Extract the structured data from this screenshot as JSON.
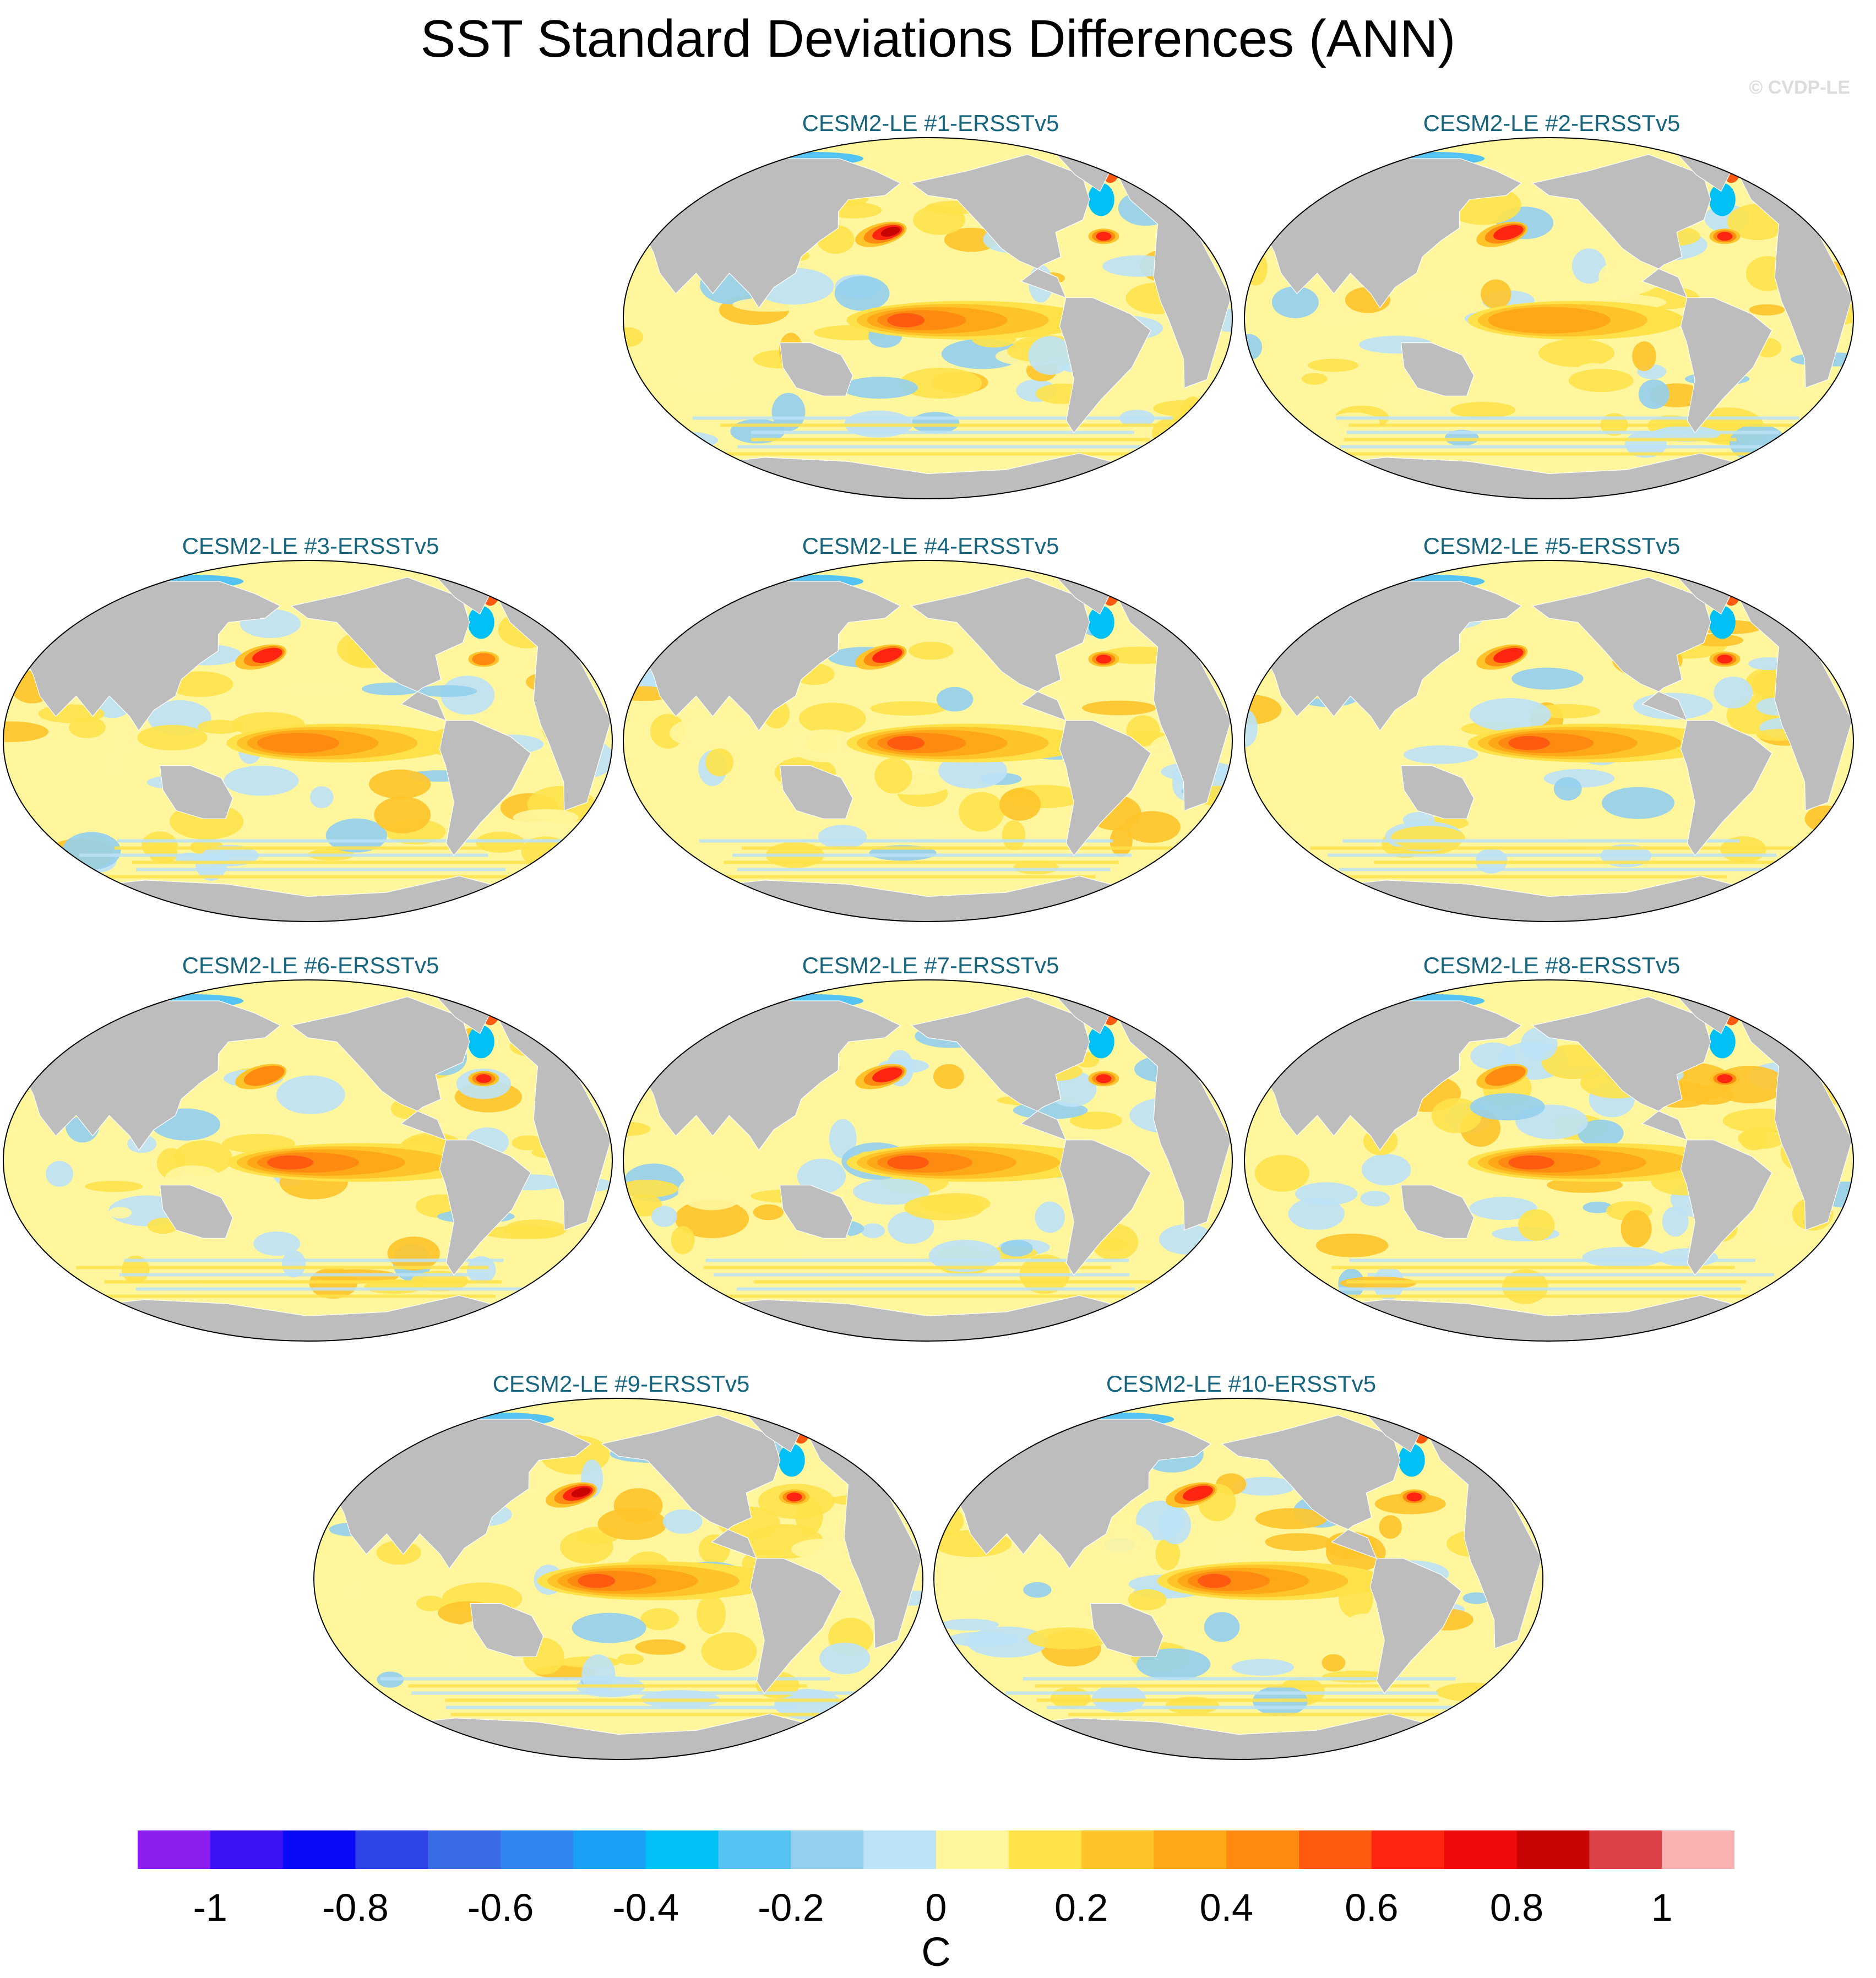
{
  "chart_data": {
    "type": "heatmap",
    "title": "SST Standard Deviations Differences (ANN)",
    "credit": "© CVDP-LE",
    "units": "C",
    "projection": "robinson-global-pacific-centered",
    "colorbar": {
      "levels": [
        -1.1,
        -1.0,
        -0.9,
        -0.8,
        -0.7,
        -0.6,
        -0.5,
        -0.4,
        -0.3,
        -0.2,
        -0.1,
        0.0,
        0.1,
        0.2,
        0.3,
        0.4,
        0.5,
        0.6,
        0.7,
        0.8,
        0.9,
        1.0,
        1.1
      ],
      "colors": [
        "#8c1ff0",
        "#3c12f5",
        "#0a0af8",
        "#2d45e6",
        "#3a6ce8",
        "#2f85f2",
        "#1aa0f5",
        "#00c0f5",
        "#55c3f2",
        "#94cfee",
        "#bce2f6",
        "#fff69e",
        "#ffe24a",
        "#ffc42a",
        "#ffa817",
        "#ff8a12",
        "#ff5a10",
        "#ff2510",
        "#f00a0a",
        "#c80404",
        "#dc4246",
        "#fcb2b2"
      ],
      "tick_labels": [
        "-1",
        "-0.8",
        "-0.6",
        "-0.4",
        "-0.2",
        "0",
        "0.2",
        "0.4",
        "0.6",
        "0.8",
        "1"
      ],
      "tick_values": [
        -1,
        -0.8,
        -0.6,
        -0.4,
        -0.2,
        0,
        0.2,
        0.4,
        0.6,
        0.8,
        1
      ]
    },
    "panels": [
      {
        "label": "CESM2-LE #1-ERSSTv5",
        "enso_max": 0.5,
        "kuroshio_max": 0.8,
        "gulfstream_max": 0.7,
        "enso_extent": 0.9,
        "seed": 1
      },
      {
        "label": "CESM2-LE #2-ERSSTv5",
        "enso_max": 0.3,
        "kuroshio_max": 0.6,
        "gulfstream_max": 0.6,
        "enso_extent": 0.8,
        "seed": 2
      },
      {
        "label": "CESM2-LE #3-ERSSTv5",
        "enso_max": 0.4,
        "kuroshio_max": 0.7,
        "gulfstream_max": 0.5,
        "enso_extent": 0.85,
        "seed": 3
      },
      {
        "label": "CESM2-LE #4-ERSSTv5",
        "enso_max": 0.6,
        "kuroshio_max": 0.6,
        "gulfstream_max": 0.6,
        "enso_extent": 0.9,
        "seed": 4
      },
      {
        "label": "CESM2-LE #5-ERSSTv5",
        "enso_max": 0.5,
        "kuroshio_max": 0.6,
        "gulfstream_max": 0.7,
        "enso_extent": 0.95,
        "seed": 5
      },
      {
        "label": "CESM2-LE #6-ERSSTv5",
        "enso_max": 0.5,
        "kuroshio_max": 0.5,
        "gulfstream_max": 0.6,
        "enso_extent": 1.0,
        "seed": 6
      },
      {
        "label": "CESM2-LE #7-ERSSTv5",
        "enso_max": 0.5,
        "kuroshio_max": 0.7,
        "gulfstream_max": 0.6,
        "enso_extent": 0.95,
        "seed": 7
      },
      {
        "label": "CESM2-LE #8-ERSSTv5",
        "enso_max": 0.5,
        "kuroshio_max": 0.5,
        "gulfstream_max": 0.7,
        "enso_extent": 1.0,
        "seed": 8
      },
      {
        "label": "CESM2-LE #9-ERSSTv5",
        "enso_max": 0.6,
        "kuroshio_max": 0.8,
        "gulfstream_max": 0.7,
        "enso_extent": 0.9,
        "seed": 9
      },
      {
        "label": "CESM2-LE #10-ERSSTv5",
        "enso_max": 0.5,
        "kuroshio_max": 0.7,
        "gulfstream_max": 0.7,
        "enso_extent": 0.85,
        "seed": 10
      }
    ]
  }
}
